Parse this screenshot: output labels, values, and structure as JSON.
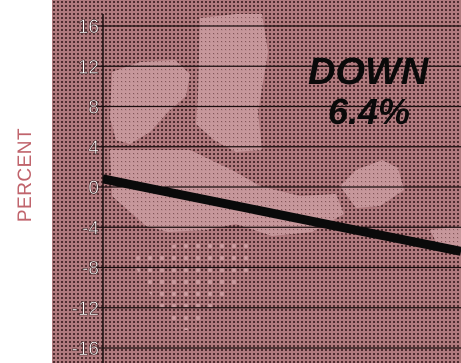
{
  "chart_data": {
    "type": "line",
    "ylabel": "PERCENT",
    "xlabel": "",
    "title": "",
    "ylim": [
      -16,
      16
    ],
    "yticks": [
      "16",
      "12",
      "8",
      "4",
      "0",
      "-4",
      "-8",
      "-12",
      "-16"
    ],
    "series": [
      {
        "x": [
          0,
          1
        ],
        "values": [
          0.8,
          -6.4
        ]
      }
    ],
    "annotations": [
      "DOWN",
      "6.4%"
    ],
    "grid": true,
    "colors": {
      "background": "#b0787c",
      "dots": "#4a2a2c",
      "light_region": "#cf9ea2",
      "line": "#0a0a0a",
      "axis_label": "#c0646c"
    }
  }
}
